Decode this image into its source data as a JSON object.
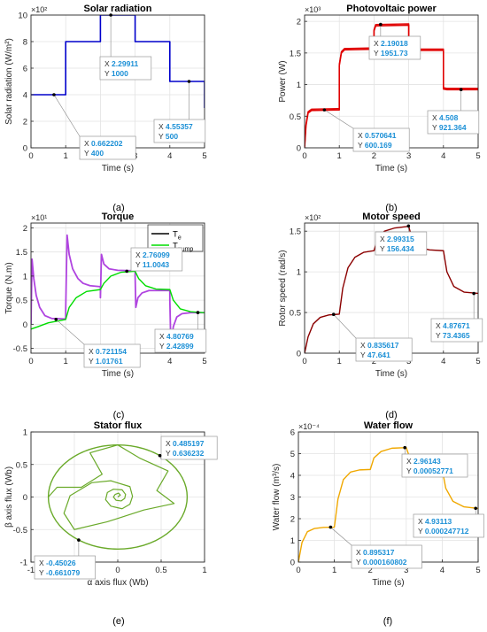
{
  "chart_data": [
    {
      "id": "a",
      "type": "line",
      "title": "Solar radiation",
      "xlabel": "Time (s)",
      "ylabel": "Solar radiation (W/m²)",
      "exponent": "×10²",
      "xlim": [
        0,
        5
      ],
      "ylim": [
        0,
        10
      ],
      "xticks": [
        0,
        1,
        2,
        3,
        4,
        5
      ],
      "yticks": [
        0,
        2,
        4,
        6,
        8,
        10
      ],
      "yticklabels": [
        "0",
        "2",
        "4",
        "6",
        "8",
        "10"
      ],
      "caption": "(a)",
      "grid": true,
      "series": [
        {
          "color": "#0000cc",
          "points": [
            [
              0,
              4
            ],
            [
              1,
              4
            ],
            [
              1,
              8
            ],
            [
              2,
              8
            ],
            [
              2,
              10
            ],
            [
              3,
              10
            ],
            [
              3,
              8
            ],
            [
              4,
              8
            ],
            [
              4,
              5
            ],
            [
              5,
              5
            ],
            [
              5,
              3
            ]
          ]
        }
      ],
      "datatips": [
        {
          "x": 0.662202,
          "y": 4,
          "xt": "0.662202",
          "yt": "400",
          "box": [
            55,
            137
          ],
          "dir": "down"
        },
        {
          "x": 2.29911,
          "y": 10,
          "xt": "2.29911",
          "yt": "1000",
          "box": [
            78,
            47
          ],
          "dir": "up"
        },
        {
          "x": 4.55357,
          "y": 5,
          "xt": "4.55357",
          "yt": "500",
          "box": [
            139,
            118
          ],
          "dir": "up"
        }
      ]
    },
    {
      "id": "b",
      "type": "line",
      "title": "Photovoltaic power",
      "xlabel": "Time (s)",
      "ylabel": "Power (W)",
      "exponent": "×10³",
      "xlim": [
        0,
        5
      ],
      "ylim": [
        0,
        2.1
      ],
      "xticks": [
        0,
        1,
        2,
        3,
        4,
        5
      ],
      "yticks": [
        0,
        0.5,
        1,
        1.5,
        2
      ],
      "yticklabels": [
        "0",
        "0.5",
        "1",
        "1.5",
        "2"
      ],
      "caption": "(b)",
      "grid": true,
      "series": [
        {
          "color": "#e00000",
          "noisy": true,
          "points": [
            [
              0,
              0
            ],
            [
              0.04,
              0.35
            ],
            [
              0.1,
              0.55
            ],
            [
              0.2,
              0.59
            ],
            [
              1,
              0.6
            ],
            [
              1,
              1.3
            ],
            [
              1.06,
              1.5
            ],
            [
              1.15,
              1.55
            ],
            [
              2,
              1.56
            ],
            [
              2,
              1.85
            ],
            [
              2.05,
              1.93
            ],
            [
              3,
              1.94
            ],
            [
              3,
              1.55
            ],
            [
              3.1,
              1.54
            ],
            [
              4,
              1.54
            ],
            [
              4,
              0.93
            ],
            [
              4.1,
              0.92
            ],
            [
              5,
              0.92
            ]
          ]
        }
      ],
      "datatips": [
        {
          "x": 0.570641,
          "y": 0.600169,
          "xt": "0.570641",
          "yt": "600.169",
          "box": [
            55,
            128
          ],
          "dir": "down"
        },
        {
          "x": 2.19018,
          "y": 1.95173,
          "xt": "2.19018",
          "yt": "1951.73",
          "box": [
            73,
            24
          ],
          "dir": "up"
        },
        {
          "x": 4.508,
          "y": 0.921364,
          "xt": "4.508",
          "yt": "921.364",
          "box": [
            139,
            108
          ],
          "dir": "up"
        }
      ]
    },
    {
      "id": "c",
      "type": "line",
      "title": "Torque",
      "xlabel": "Time (s)",
      "ylabel": "Torque (N.m)",
      "exponent": "×10¹",
      "xlim": [
        0,
        5
      ],
      "ylim": [
        -0.6,
        2.1
      ],
      "xticks": [
        0,
        1,
        2,
        3,
        4,
        5
      ],
      "yticks": [
        -0.5,
        0,
        0.5,
        1,
        1.5,
        2
      ],
      "yticklabels": [
        "-0.5",
        "0",
        "0.5",
        "1",
        "1.5",
        "2"
      ],
      "caption": "(c)",
      "grid": true,
      "legend": {
        "position": "top-right",
        "entries": [
          {
            "label": "T",
            "sub": "e",
            "color": "#000000"
          },
          {
            "label": "T",
            "sub": "pump",
            "color": "#00dd00"
          }
        ]
      },
      "series": [
        {
          "color": "#b044e0",
          "width": 1.8,
          "points": [
            [
              0,
              0
            ],
            [
              0.03,
              1.35
            ],
            [
              0.08,
              0.95
            ],
            [
              0.15,
              0.6
            ],
            [
              0.25,
              0.35
            ],
            [
              0.4,
              0.18
            ],
            [
              0.6,
              0.12
            ],
            [
              1,
              0.11
            ],
            [
              1.0,
              0.3
            ],
            [
              1.04,
              1.85
            ],
            [
              1.1,
              1.45
            ],
            [
              1.2,
              1.15
            ],
            [
              1.35,
              0.95
            ],
            [
              1.5,
              0.85
            ],
            [
              1.7,
              0.8
            ],
            [
              2,
              0.78
            ],
            [
              2.0,
              0.55
            ],
            [
              2.03,
              1.45
            ],
            [
              2.1,
              1.25
            ],
            [
              2.25,
              1.15
            ],
            [
              2.5,
              1.12
            ],
            [
              3,
              1.11
            ],
            [
              3.0,
              1.0
            ],
            [
              3.02,
              0.35
            ],
            [
              3.08,
              0.55
            ],
            [
              3.2,
              0.65
            ],
            [
              3.4,
              0.7
            ],
            [
              4,
              0.7
            ],
            [
              4.0,
              0.5
            ],
            [
              4.03,
              -0.45
            ],
            [
              4.1,
              -0.05
            ],
            [
              4.2,
              0.15
            ],
            [
              4.35,
              0.22
            ],
            [
              4.6,
              0.24
            ],
            [
              5,
              0.24
            ]
          ]
        },
        {
          "color": "#00dd00",
          "width": 1.4,
          "points": [
            [
              0,
              -0.1
            ],
            [
              0.2,
              -0.05
            ],
            [
              0.5,
              0.03
            ],
            [
              1,
              0.1
            ],
            [
              1.0,
              0.1
            ],
            [
              1.1,
              0.35
            ],
            [
              1.3,
              0.55
            ],
            [
              1.6,
              0.68
            ],
            [
              2,
              0.72
            ],
            [
              2.1,
              0.85
            ],
            [
              2.3,
              1.0
            ],
            [
              2.6,
              1.08
            ],
            [
              3,
              1.1
            ],
            [
              3.1,
              0.95
            ],
            [
              3.3,
              0.8
            ],
            [
              3.6,
              0.73
            ],
            [
              4,
              0.72
            ],
            [
              4.1,
              0.5
            ],
            [
              4.3,
              0.32
            ],
            [
              4.6,
              0.26
            ],
            [
              5,
              0.24
            ]
          ]
        }
      ],
      "datatips": [
        {
          "x": 0.721154,
          "y": 0.101761,
          "xt": "0.721154",
          "yt": "1.01761",
          "box": [
            60,
            137
          ],
          "dir": "down"
        },
        {
          "x": 2.76099,
          "y": 1.10043,
          "xt": "2.76099",
          "yt": "11.0043",
          "box": [
            113,
            28
          ],
          "dir": "up"
        },
        {
          "x": 4.80769,
          "y": 0.242899,
          "xt": "4.80769",
          "yt": "2.42899",
          "box": [
            140,
            120
          ],
          "dir": "up"
        }
      ]
    },
    {
      "id": "d",
      "type": "line",
      "title": "Motor speed",
      "xlabel": "Time (s)",
      "ylabel": "Rotor speed (rad/s)",
      "exponent": "×10²",
      "xlim": [
        0,
        5
      ],
      "ylim": [
        0,
        1.6
      ],
      "xticks": [
        0,
        1,
        2,
        3,
        4,
        5
      ],
      "yticks": [
        0,
        0.5,
        1,
        1.5
      ],
      "yticklabels": [
        "0",
        "0.5",
        "1",
        "1.5"
      ],
      "caption": "(d)",
      "grid": true,
      "series": [
        {
          "color": "#8b0000",
          "width": 1.4,
          "points": [
            [
              0,
              0
            ],
            [
              0.1,
              0.2
            ],
            [
              0.25,
              0.36
            ],
            [
              0.45,
              0.44
            ],
            [
              0.7,
              0.47
            ],
            [
              1,
              0.48
            ],
            [
              1.1,
              0.8
            ],
            [
              1.25,
              1.05
            ],
            [
              1.45,
              1.18
            ],
            [
              1.7,
              1.24
            ],
            [
              2,
              1.26
            ],
            [
              2.1,
              1.4
            ],
            [
              2.3,
              1.5
            ],
            [
              2.6,
              1.54
            ],
            [
              3,
              1.56
            ],
            [
              3.1,
              1.4
            ],
            [
              3.3,
              1.3
            ],
            [
              3.6,
              1.27
            ],
            [
              4,
              1.26
            ],
            [
              4.1,
              1.0
            ],
            [
              4.3,
              0.82
            ],
            [
              4.6,
              0.75
            ],
            [
              5,
              0.735
            ]
          ]
        }
      ],
      "datatips": [
        {
          "x": 0.835617,
          "y": 0.47641,
          "xt": "0.835617",
          "yt": "47.641",
          "box": [
            58,
            130
          ],
          "dir": "down"
        },
        {
          "x": 2.99315,
          "y": 1.56434,
          "xt": "2.99315",
          "yt": "156.434",
          "box": [
            80,
            10
          ],
          "dir": "up"
        },
        {
          "x": 4.87671,
          "y": 0.734365,
          "xt": "4.87671",
          "yt": "73.4365",
          "box": [
            143,
            108
          ],
          "dir": "up"
        }
      ]
    },
    {
      "id": "e",
      "type": "line",
      "title": "Stator flux",
      "xlabel": "α axis flux (Wb)",
      "ylabel": "β axis flux (Wb)",
      "exponent": "",
      "xlim": [
        -1,
        1
      ],
      "ylim": [
        -1,
        1
      ],
      "xticks": [
        -1,
        -0.5,
        0,
        0.5,
        1
      ],
      "yticks": [
        -1,
        -0.5,
        0,
        0.5,
        1
      ],
      "xticklabels": [
        "-1",
        "-0.5",
        "0",
        "0.5",
        "1"
      ],
      "yticklabels": [
        "-1",
        "-0.5",
        "0",
        "0.5",
        "1"
      ],
      "caption": "(e)",
      "grid": true,
      "series": [
        {
          "color": "#6aaa2a",
          "width": 1.4,
          "circle": 0.8
        },
        {
          "color": "#6aaa2a",
          "width": 1.2,
          "points": [
            [
              0,
              0
            ],
            [
              0.03,
              0.03
            ],
            [
              0.01,
              0.06
            ],
            [
              -0.03,
              0.04
            ],
            [
              -0.05,
              0
            ],
            [
              -0.02,
              -0.05
            ],
            [
              0.04,
              -0.06
            ],
            [
              0.08,
              -0.02
            ],
            [
              0.09,
              0.04
            ],
            [
              0.05,
              0.11
            ],
            [
              -0.05,
              0.12
            ],
            [
              -0.12,
              0.07
            ],
            [
              -0.14,
              -0.04
            ],
            [
              -0.08,
              -0.14
            ],
            [
              0.05,
              -0.18
            ],
            [
              0.14,
              -0.11
            ],
            [
              0.17,
              0.01
            ],
            [
              0.14,
              0.16
            ],
            [
              -0.08,
              0.25
            ],
            [
              -0.3,
              0.22
            ],
            [
              -0.55,
              0.02
            ],
            [
              -0.62,
              -0.25
            ],
            [
              -0.5,
              -0.5
            ],
            [
              -0.12,
              -0.38
            ],
            [
              0.3,
              -0.2
            ],
            [
              0.65,
              -0.1
            ],
            [
              0.45,
              0.1
            ],
            [
              0.58,
              0.4
            ],
            [
              0.25,
              0.6
            ],
            [
              0,
              0.8
            ],
            [
              -0.32,
              0.68
            ],
            [
              -0.18,
              0.35
            ],
            [
              -0.42,
              0.15
            ],
            [
              -0.7,
              0.15
            ],
            [
              -0.8,
              0
            ]
          ]
        }
      ],
      "datatips": [
        {
          "x": 0.485197,
          "y": 0.636232,
          "xt": "0.485197",
          "yt": "0.636232",
          "box": [
            147,
            5
          ],
          "dir": "up"
        },
        {
          "x": -0.45026,
          "y": -0.661079,
          "xt": "-0.45026",
          "yt": "-0.661079",
          "box": [
            4,
            140
          ],
          "dir": "down"
        }
      ]
    },
    {
      "id": "f",
      "type": "line",
      "title": "Water flow",
      "xlabel": "Time  (s)",
      "ylabel": "Water flow (m³/s)",
      "exponent": "×10⁻⁴",
      "xlim": [
        0,
        5
      ],
      "ylim": [
        0,
        6
      ],
      "xticks": [
        0,
        1,
        2,
        3,
        4,
        5
      ],
      "yticks": [
        0,
        1,
        2,
        3,
        4,
        5,
        6
      ],
      "yticklabels": [
        "0",
        "1",
        "2",
        "3",
        "4",
        "5",
        "6"
      ],
      "caption": "(f)",
      "grid": true,
      "series": [
        {
          "color": "#f0a800",
          "width": 1.4,
          "points": [
            [
              0,
              0
            ],
            [
              0.1,
              0.9
            ],
            [
              0.25,
              1.4
            ],
            [
              0.45,
              1.55
            ],
            [
              0.7,
              1.6
            ],
            [
              1,
              1.61
            ],
            [
              1.1,
              2.9
            ],
            [
              1.25,
              3.8
            ],
            [
              1.45,
              4.15
            ],
            [
              1.7,
              4.25
            ],
            [
              2,
              4.27
            ],
            [
              2.1,
              4.8
            ],
            [
              2.3,
              5.1
            ],
            [
              2.6,
              5.25
            ],
            [
              3,
              5.28
            ],
            [
              3.1,
              4.8
            ],
            [
              3.3,
              4.4
            ],
            [
              3.6,
              4.28
            ],
            [
              4,
              4.27
            ],
            [
              4.1,
              3.4
            ],
            [
              4.3,
              2.8
            ],
            [
              4.6,
              2.55
            ],
            [
              5,
              2.47
            ]
          ]
        }
      ],
      "datatips": [
        {
          "x": 0.895317,
          "y": 1.60802,
          "xt": "0.895317",
          "yt": "0.000160802",
          "box": [
            60,
            128
          ],
          "dir": "down"
        },
        {
          "x": 2.96143,
          "y": 5.2771,
          "xt": "2.96143",
          "yt": "0.00052771",
          "box": [
            117,
            25
          ],
          "dir": "up"
        },
        {
          "x": 4.93113,
          "y": 2.47712,
          "xt": "4.93113",
          "yt": "0.000247712",
          "box": [
            130,
            93
          ],
          "dir": "up"
        }
      ]
    }
  ]
}
